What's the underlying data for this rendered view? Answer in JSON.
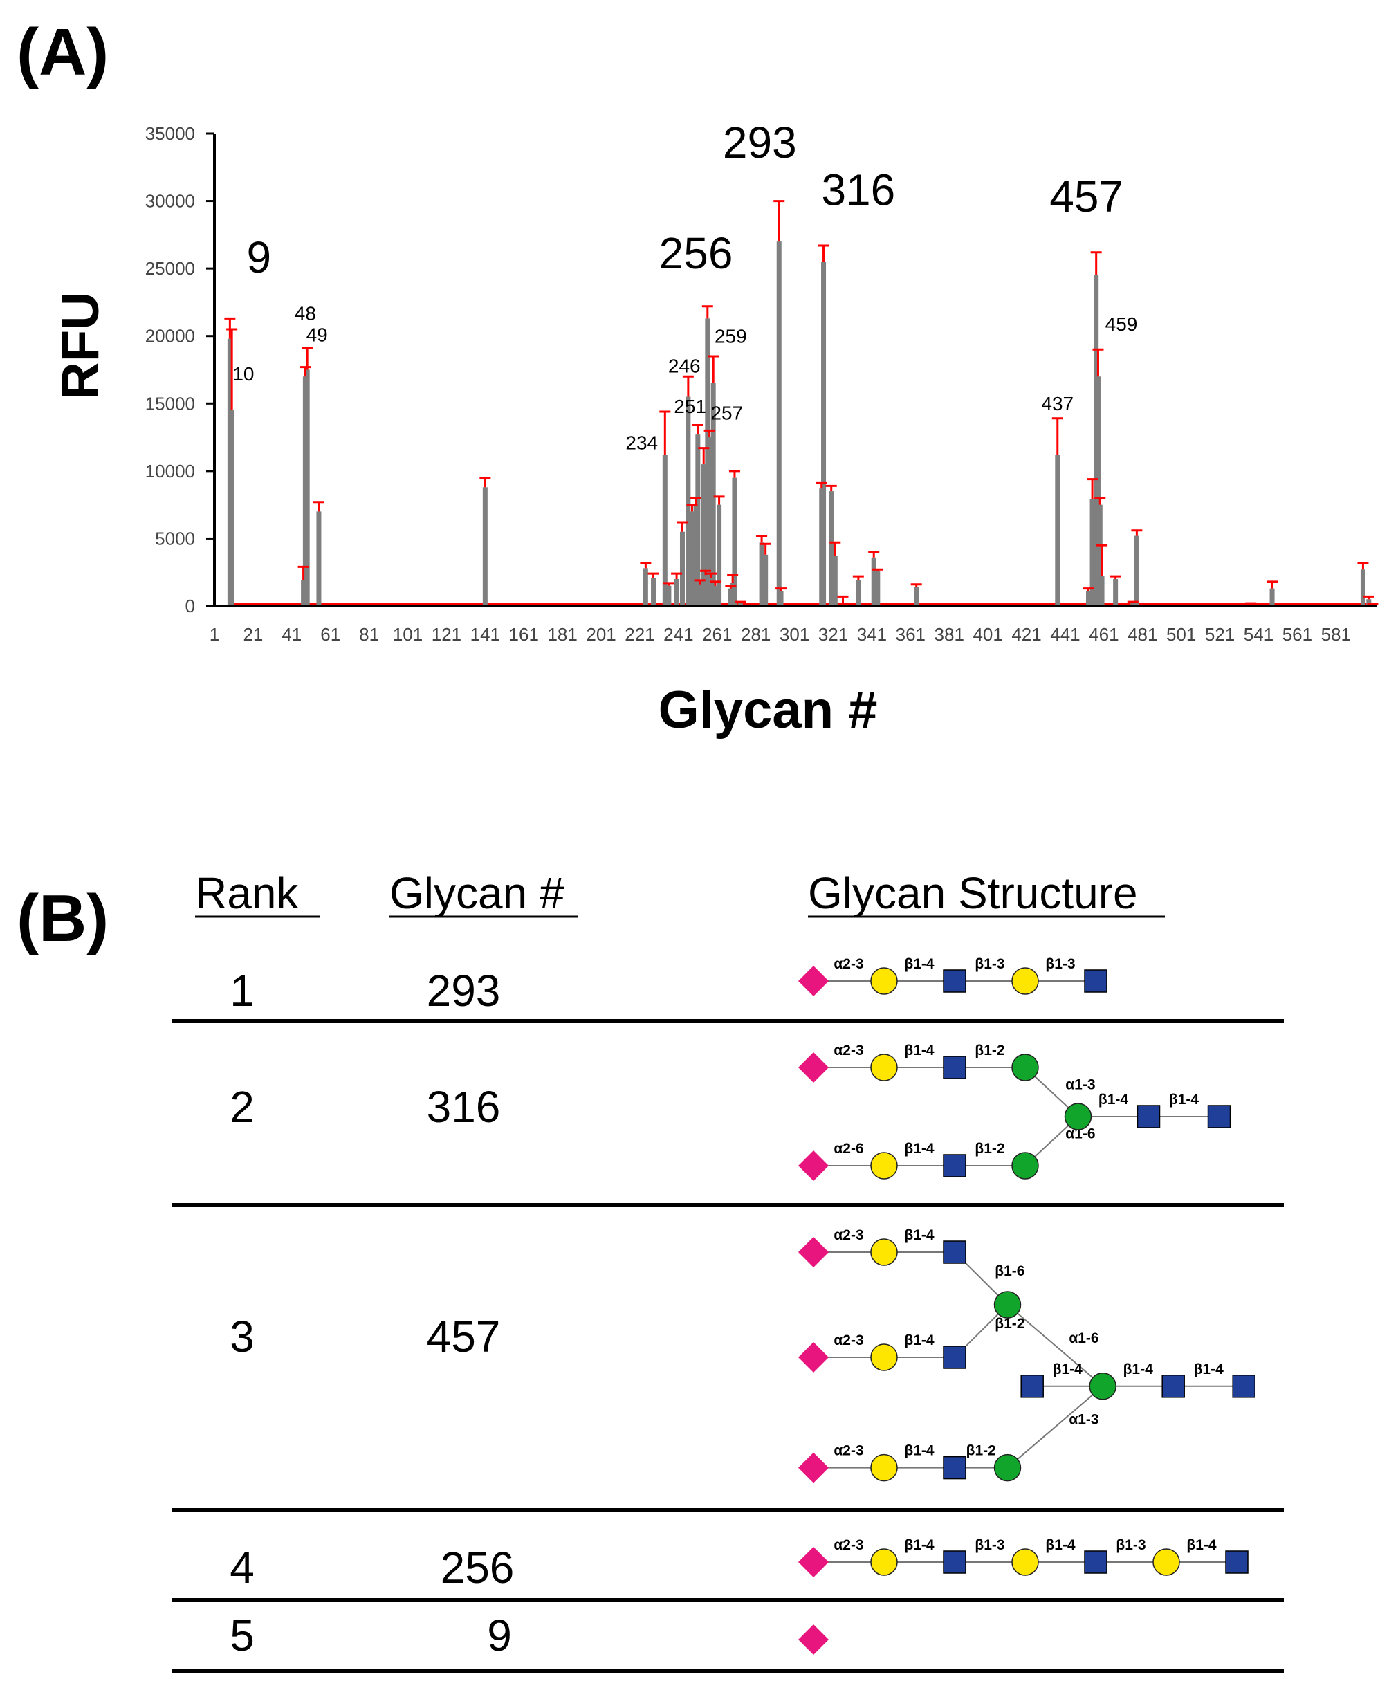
{
  "panel_a": {
    "label": "(A)"
  },
  "panel_b": {
    "label": "(B)",
    "headers": {
      "rank": "Rank",
      "glycan_num": "Glycan #",
      "structure": "Glycan Structure"
    },
    "rows": [
      {
        "rank": "1",
        "glycan": "293"
      },
      {
        "rank": "2",
        "glycan": "316"
      },
      {
        "rank": "3",
        "glycan": "457"
      },
      {
        "rank": "4",
        "glycan": "256"
      },
      {
        "rank": "5",
        "glycan": "9"
      }
    ]
  },
  "symbol_colors": {
    "sialic_acid": "#e8157f",
    "galactose": "#ffe600",
    "glcnac": "#1f3f99",
    "mannose": "#12a52b"
  },
  "chart_data": {
    "type": "bar",
    "title": "",
    "xlabel": "Glycan #",
    "ylabel": "RFU",
    "ylim": [
      0,
      35000
    ],
    "yticks": [
      0,
      5000,
      10000,
      15000,
      20000,
      25000,
      30000,
      35000
    ],
    "xticks": [
      1,
      21,
      41,
      61,
      81,
      101,
      121,
      141,
      161,
      181,
      201,
      221,
      241,
      261,
      281,
      301,
      321,
      341,
      361,
      381,
      401,
      421,
      441,
      461,
      481,
      501,
      521,
      541,
      561,
      581
    ],
    "xlim": [
      1,
      602
    ],
    "bar_color": "#7f7f7f",
    "error_color": "#ff0000",
    "bars": [
      {
        "x": 9,
        "value": 19800,
        "error": 1500
      },
      {
        "x": 10,
        "value": 14500,
        "error": 6000
      },
      {
        "x": 47,
        "value": 1900,
        "error": 1000
      },
      {
        "x": 48,
        "value": 17000,
        "error": 700
      },
      {
        "x": 49,
        "value": 17500,
        "error": 1600
      },
      {
        "x": 55,
        "value": 7000,
        "error": 700
      },
      {
        "x": 141,
        "value": 8800,
        "error": 700
      },
      {
        "x": 224,
        "value": 2800,
        "error": 400
      },
      {
        "x": 228,
        "value": 2100,
        "error": 300
      },
      {
        "x": 234,
        "value": 11200,
        "error": 3200
      },
      {
        "x": 236,
        "value": 1500,
        "error": 200
      },
      {
        "x": 240,
        "value": 2000,
        "error": 400
      },
      {
        "x": 243,
        "value": 5500,
        "error": 700
      },
      {
        "x": 246,
        "value": 15500,
        "error": 1500
      },
      {
        "x": 248,
        "value": 7000,
        "error": 500
      },
      {
        "x": 250,
        "value": 7500,
        "error": 500
      },
      {
        "x": 251,
        "value": 12700,
        "error": 700
      },
      {
        "x": 252,
        "value": 1600,
        "error": 300
      },
      {
        "x": 254,
        "value": 10500,
        "error": 1200
      },
      {
        "x": 255,
        "value": 2300,
        "error": 300
      },
      {
        "x": 256,
        "value": 21300,
        "error": 900
      },
      {
        "x": 257,
        "value": 12500,
        "error": 500
      },
      {
        "x": 258,
        "value": 2100,
        "error": 300
      },
      {
        "x": 259,
        "value": 16500,
        "error": 2000
      },
      {
        "x": 260,
        "value": 1500,
        "error": 300
      },
      {
        "x": 262,
        "value": 7500,
        "error": 600
      },
      {
        "x": 268,
        "value": 1300,
        "error": 200
      },
      {
        "x": 269,
        "value": 1700,
        "error": 600
      },
      {
        "x": 270,
        "value": 9500,
        "error": 500
      },
      {
        "x": 273,
        "value": 200,
        "error": 100
      },
      {
        "x": 284,
        "value": 4700,
        "error": 500
      },
      {
        "x": 286,
        "value": 3800,
        "error": 800
      },
      {
        "x": 293,
        "value": 27000,
        "error": 3000
      },
      {
        "x": 294,
        "value": 1100,
        "error": 200
      },
      {
        "x": 299,
        "value": 100,
        "error": 50
      },
      {
        "x": 315,
        "value": 8700,
        "error": 400
      },
      {
        "x": 316,
        "value": 25500,
        "error": 1200
      },
      {
        "x": 320,
        "value": 8500,
        "error": 400
      },
      {
        "x": 322,
        "value": 3700,
        "error": 1000
      },
      {
        "x": 326,
        "value": 100,
        "error": 600
      },
      {
        "x": 334,
        "value": 1900,
        "error": 300
      },
      {
        "x": 342,
        "value": 3600,
        "error": 400
      },
      {
        "x": 344,
        "value": 2600,
        "error": 100
      },
      {
        "x": 364,
        "value": 1400,
        "error": 200
      },
      {
        "x": 424,
        "value": 100,
        "error": 50
      },
      {
        "x": 437,
        "value": 11200,
        "error": 2700
      },
      {
        "x": 453,
        "value": 1100,
        "error": 200
      },
      {
        "x": 455,
        "value": 7900,
        "error": 1500
      },
      {
        "x": 457,
        "value": 24500,
        "error": 1700
      },
      {
        "x": 458,
        "value": 17000,
        "error": 2000
      },
      {
        "x": 459,
        "value": 7500,
        "error": 500
      },
      {
        "x": 460,
        "value": 2200,
        "error": 2300
      },
      {
        "x": 467,
        "value": 2000,
        "error": 200
      },
      {
        "x": 476,
        "value": 200,
        "error": 100
      },
      {
        "x": 478,
        "value": 5200,
        "error": 400
      },
      {
        "x": 490,
        "value": 100,
        "error": 50
      },
      {
        "x": 517,
        "value": 100,
        "error": 50
      },
      {
        "x": 537,
        "value": 100,
        "error": 100
      },
      {
        "x": 548,
        "value": 1300,
        "error": 500
      },
      {
        "x": 560,
        "value": 100,
        "error": 50
      },
      {
        "x": 568,
        "value": 100,
        "error": 50
      },
      {
        "x": 595,
        "value": 2700,
        "error": 500
      },
      {
        "x": 598,
        "value": 500,
        "error": 200
      },
      {
        "x": 600,
        "value": 100,
        "error": 50
      }
    ],
    "annotations": [
      {
        "text": "9",
        "x": 24,
        "y": 24700,
        "size": "large"
      },
      {
        "text": "256",
        "x": 250,
        "y": 25000,
        "size": "large"
      },
      {
        "text": "293",
        "x": 283,
        "y": 33200,
        "size": "large"
      },
      {
        "text": "316",
        "x": 334,
        "y": 29700,
        "size": "large"
      },
      {
        "text": "457",
        "x": 452,
        "y": 29200,
        "size": "large"
      },
      {
        "text": "10",
        "x": 16,
        "y": 16700,
        "size": "small"
      },
      {
        "text": "48",
        "x": 48,
        "y": 21200,
        "size": "small"
      },
      {
        "text": "49",
        "x": 54,
        "y": 19600,
        "size": "small"
      },
      {
        "text": "246",
        "x": 244,
        "y": 17300,
        "size": "small"
      },
      {
        "text": "259",
        "x": 268,
        "y": 19500,
        "size": "small"
      },
      {
        "text": "251",
        "x": 247,
        "y": 14300,
        "size": "small"
      },
      {
        "text": "257",
        "x": 266,
        "y": 13800,
        "size": "small"
      },
      {
        "text": "234",
        "x": 222,
        "y": 11600,
        "size": "small"
      },
      {
        "text": "437",
        "x": 437,
        "y": 14500,
        "size": "small"
      },
      {
        "text": "459",
        "x": 470,
        "y": 20400,
        "size": "small"
      }
    ]
  },
  "structures": [
    {
      "rank": "1",
      "nodes": [
        {
          "id": "a",
          "type": "sialic_acid",
          "x": 0,
          "y": 0
        },
        {
          "id": "b",
          "type": "galactose",
          "x": 1,
          "y": 0
        },
        {
          "id": "c",
          "type": "glcnac",
          "x": 2,
          "y": 0
        },
        {
          "id": "d",
          "type": "galactose",
          "x": 3,
          "y": 0
        },
        {
          "id": "e",
          "type": "glcnac",
          "x": 4,
          "y": 0
        }
      ],
      "links": [
        {
          "from": "a",
          "to": "b",
          "label": "α2-3"
        },
        {
          "from": "b",
          "to": "c",
          "label": "β1-4"
        },
        {
          "from": "c",
          "to": "d",
          "label": "β1-3"
        },
        {
          "from": "d",
          "to": "e",
          "label": "β1-3"
        }
      ]
    },
    {
      "rank": "2",
      "nodes": [
        {
          "id": "a1",
          "type": "sialic_acid",
          "x": 0,
          "y": 0
        },
        {
          "id": "b1",
          "type": "galactose",
          "x": 1,
          "y": 0
        },
        {
          "id": "c1",
          "type": "glcnac",
          "x": 2,
          "y": 0
        },
        {
          "id": "m1",
          "type": "mannose",
          "x": 3,
          "y": 0
        },
        {
          "id": "a2",
          "type": "sialic_acid",
          "x": 0,
          "y": 2
        },
        {
          "id": "b2",
          "type": "galactose",
          "x": 1,
          "y": 2
        },
        {
          "id": "c2",
          "type": "glcnac",
          "x": 2,
          "y": 2
        },
        {
          "id": "m2",
          "type": "mannose",
          "x": 3,
          "y": 2
        },
        {
          "id": "core",
          "type": "mannose",
          "x": 3.75,
          "y": 1
        },
        {
          "id": "g1",
          "type": "glcnac",
          "x": 4.75,
          "y": 1
        },
        {
          "id": "g2",
          "type": "glcnac",
          "x": 5.75,
          "y": 1
        }
      ],
      "links": [
        {
          "from": "a1",
          "to": "b1",
          "label": "α2-3"
        },
        {
          "from": "b1",
          "to": "c1",
          "label": "β1-4"
        },
        {
          "from": "c1",
          "to": "m1",
          "label": "β1-2"
        },
        {
          "from": "m1",
          "to": "core",
          "label": "α1-3"
        },
        {
          "from": "a2",
          "to": "b2",
          "label": "α2-6"
        },
        {
          "from": "b2",
          "to": "c2",
          "label": "β1-4"
        },
        {
          "from": "c2",
          "to": "m2",
          "label": "β1-2"
        },
        {
          "from": "m2",
          "to": "core",
          "label": "α1-6"
        },
        {
          "from": "core",
          "to": "g1",
          "label": "β1-4"
        },
        {
          "from": "g1",
          "to": "g2",
          "label": "β1-4"
        }
      ]
    },
    {
      "rank": "3",
      "nodes": [
        {
          "id": "a1",
          "type": "sialic_acid",
          "x": 0,
          "y": 0
        },
        {
          "id": "b1",
          "type": "galactose",
          "x": 1,
          "y": 0
        },
        {
          "id": "c1",
          "type": "glcnac",
          "x": 2,
          "y": 0
        },
        {
          "id": "a2",
          "type": "sialic_acid",
          "x": 0,
          "y": 2
        },
        {
          "id": "b2",
          "type": "galactose",
          "x": 1,
          "y": 2
        },
        {
          "id": "c2",
          "type": "glcnac",
          "x": 2,
          "y": 2
        },
        {
          "id": "mA",
          "type": "mannose",
          "x": 2.75,
          "y": 1
        },
        {
          "id": "bis",
          "type": "glcnac",
          "x": 3.1,
          "y": 2.55
        },
        {
          "id": "core",
          "type": "mannose",
          "x": 4.1,
          "y": 2.55
        },
        {
          "id": "g1",
          "type": "glcnac",
          "x": 5.1,
          "y": 2.55
        },
        {
          "id": "g2",
          "type": "glcnac",
          "x": 6.1,
          "y": 2.55
        },
        {
          "id": "a3",
          "type": "sialic_acid",
          "x": 0,
          "y": 4.1
        },
        {
          "id": "b3",
          "type": "galactose",
          "x": 1,
          "y": 4.1
        },
        {
          "id": "c3",
          "type": "glcnac",
          "x": 2,
          "y": 4.1
        },
        {
          "id": "mB",
          "type": "mannose",
          "x": 2.75,
          "y": 4.1
        }
      ],
      "links": [
        {
          "from": "a1",
          "to": "b1",
          "label": "α2-3"
        },
        {
          "from": "b1",
          "to": "c1",
          "label": "β1-4"
        },
        {
          "from": "c1",
          "to": "mA",
          "label": "β1-6"
        },
        {
          "from": "a2",
          "to": "b2",
          "label": "α2-3"
        },
        {
          "from": "b2",
          "to": "c2",
          "label": "β1-4"
        },
        {
          "from": "c2",
          "to": "mA",
          "label": "β1-2"
        },
        {
          "from": "mA",
          "to": "core",
          "label": "α1-6"
        },
        {
          "from": "bis",
          "to": "core",
          "label": "β1-4"
        },
        {
          "from": "core",
          "to": "g1",
          "label": "β1-4"
        },
        {
          "from": "g1",
          "to": "g2",
          "label": "β1-4"
        },
        {
          "from": "a3",
          "to": "b3",
          "label": "α2-3"
        },
        {
          "from": "b3",
          "to": "c3",
          "label": "β1-4"
        },
        {
          "from": "c3",
          "to": "mB",
          "label": "β1-2"
        },
        {
          "from": "mB",
          "to": "core",
          "label": "α1-3"
        }
      ]
    },
    {
      "rank": "4",
      "nodes": [
        {
          "id": "a",
          "type": "sialic_acid",
          "x": 0,
          "y": 0
        },
        {
          "id": "b",
          "type": "galactose",
          "x": 1,
          "y": 0
        },
        {
          "id": "c",
          "type": "glcnac",
          "x": 2,
          "y": 0
        },
        {
          "id": "d",
          "type": "galactose",
          "x": 3,
          "y": 0
        },
        {
          "id": "e",
          "type": "glcnac",
          "x": 4,
          "y": 0
        },
        {
          "id": "f",
          "type": "galactose",
          "x": 5,
          "y": 0
        },
        {
          "id": "g",
          "type": "glcnac",
          "x": 6,
          "y": 0
        }
      ],
      "links": [
        {
          "from": "a",
          "to": "b",
          "label": "α2-3"
        },
        {
          "from": "b",
          "to": "c",
          "label": "β1-4"
        },
        {
          "from": "c",
          "to": "d",
          "label": "β1-3"
        },
        {
          "from": "d",
          "to": "e",
          "label": "β1-4"
        },
        {
          "from": "e",
          "to": "f",
          "label": "β1-3"
        },
        {
          "from": "f",
          "to": "g",
          "label": "β1-4"
        }
      ]
    },
    {
      "rank": "5",
      "nodes": [
        {
          "id": "a",
          "type": "sialic_acid",
          "x": 0,
          "y": 0
        }
      ],
      "links": []
    }
  ]
}
